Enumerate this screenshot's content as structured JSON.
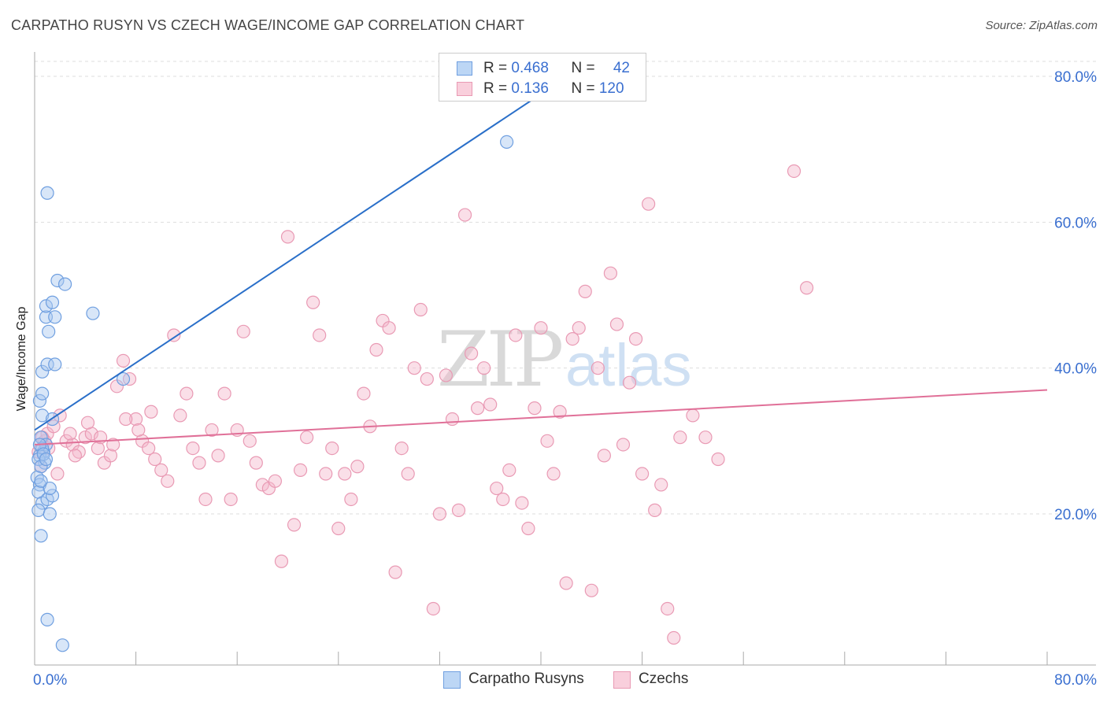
{
  "title": "CARPATHO RUSYN VS CZECH WAGE/INCOME GAP CORRELATION CHART",
  "source": "Source: ZipAtlas.com",
  "colors": {
    "blue_fill": "#a8c8f0",
    "blue_stroke": "#6f9fe0",
    "blue_line": "#2a6fc9",
    "pink_fill": "#f5b8cb",
    "pink_stroke": "#e99ab4",
    "pink_line": "#e07098",
    "axis_label_blue": "#3a6fd0"
  },
  "legend": {
    "row1": {
      "r_label": "R = ",
      "r_value": "0.468",
      "n_label": "N = ",
      "n_value": "42"
    },
    "row2": {
      "r_label": "R = ",
      "r_value": "0.136",
      "n_label": "N = ",
      "n_value": "120"
    }
  },
  "chart_data": {
    "type": "scatter",
    "title": "CARPATHO RUSYN VS CZECH WAGE/INCOME GAP CORRELATION CHART",
    "xlabel": "",
    "ylabel": "Wage/Income Gap",
    "xlim": [
      0,
      80
    ],
    "ylim": [
      0,
      82
    ],
    "x_tick_labels": {
      "left": "0.0%",
      "right": "80.0%"
    },
    "y_ticks": [
      20,
      40,
      60,
      80
    ],
    "y_tick_labels": [
      "20.0%",
      "40.0%",
      "60.0%",
      "80.0%"
    ],
    "watermark": {
      "part1": "ZIP",
      "part2": "atlas"
    },
    "series": [
      {
        "name": "Carpatho Rusyns",
        "R": 0.468,
        "N": 42,
        "trend": {
          "x0": 0,
          "y0": 31.5,
          "x1": 40.2,
          "y1": 77.8
        },
        "points": [
          [
            0.5,
            30.5
          ],
          [
            0.7,
            28.5
          ],
          [
            0.8,
            27.0
          ],
          [
            0.9,
            29.5
          ],
          [
            0.6,
            29.0
          ],
          [
            0.4,
            28.0
          ],
          [
            0.3,
            27.5
          ],
          [
            0.5,
            26.5
          ],
          [
            0.2,
            25.0
          ],
          [
            0.4,
            24.0
          ],
          [
            0.3,
            23.0
          ],
          [
            0.6,
            21.5
          ],
          [
            0.3,
            20.5
          ],
          [
            1.0,
            22.0
          ],
          [
            1.4,
            22.5
          ],
          [
            1.2,
            20.0
          ],
          [
            0.5,
            17.0
          ],
          [
            0.6,
            33.5
          ],
          [
            1.4,
            33.0
          ],
          [
            0.4,
            35.5
          ],
          [
            0.6,
            36.5
          ],
          [
            0.6,
            39.5
          ],
          [
            1.0,
            40.5
          ],
          [
            1.6,
            40.5
          ],
          [
            1.1,
            45.0
          ],
          [
            0.9,
            47.0
          ],
          [
            1.6,
            47.0
          ],
          [
            0.9,
            48.5
          ],
          [
            1.4,
            49.0
          ],
          [
            1.8,
            52.0
          ],
          [
            2.4,
            51.5
          ],
          [
            4.6,
            47.5
          ],
          [
            1.0,
            64.0
          ],
          [
            7.0,
            38.5
          ],
          [
            37.3,
            71.0
          ],
          [
            1.0,
            5.5
          ],
          [
            2.2,
            2.0
          ],
          [
            0.4,
            29.5
          ],
          [
            0.7,
            28.2
          ],
          [
            1.2,
            23.5
          ],
          [
            0.9,
            27.5
          ],
          [
            0.5,
            24.5
          ]
        ]
      },
      {
        "name": "Czechs",
        "R": 0.136,
        "N": 120,
        "trend": {
          "x0": 0,
          "y0": 29.5,
          "x1": 80,
          "y1": 37.0
        },
        "points": [
          [
            0.3,
            28.5
          ],
          [
            0.5,
            26.5
          ],
          [
            0.8,
            30.0
          ],
          [
            1.0,
            31.0
          ],
          [
            1.5,
            32.0
          ],
          [
            2.0,
            33.5
          ],
          [
            2.5,
            30.0
          ],
          [
            3.0,
            29.5
          ],
          [
            3.5,
            28.5
          ],
          [
            4.0,
            30.5
          ],
          [
            4.5,
            31.0
          ],
          [
            5.0,
            29.0
          ],
          [
            5.5,
            27.0
          ],
          [
            6.0,
            28.0
          ],
          [
            6.5,
            37.5
          ],
          [
            7.0,
            41.0
          ],
          [
            7.5,
            38.5
          ],
          [
            8.0,
            33.0
          ],
          [
            8.5,
            30.0
          ],
          [
            9.0,
            29.0
          ],
          [
            9.5,
            27.5
          ],
          [
            10.0,
            26.0
          ],
          [
            10.5,
            24.5
          ],
          [
            11.0,
            44.5
          ],
          [
            11.5,
            33.5
          ],
          [
            12.0,
            36.5
          ],
          [
            12.5,
            29.0
          ],
          [
            13.0,
            27.0
          ],
          [
            13.5,
            22.0
          ],
          [
            14.0,
            31.5
          ],
          [
            14.5,
            28.0
          ],
          [
            15.0,
            36.5
          ],
          [
            15.5,
            22.0
          ],
          [
            16.0,
            31.5
          ],
          [
            16.5,
            45.0
          ],
          [
            17.0,
            30.0
          ],
          [
            17.5,
            27.0
          ],
          [
            18.0,
            24.0
          ],
          [
            18.5,
            23.5
          ],
          [
            19.0,
            24.5
          ],
          [
            19.5,
            13.5
          ],
          [
            20.0,
            58.0
          ],
          [
            20.5,
            18.5
          ],
          [
            21.0,
            26.0
          ],
          [
            21.5,
            30.5
          ],
          [
            22.0,
            49.0
          ],
          [
            22.5,
            44.5
          ],
          [
            23.0,
            25.5
          ],
          [
            23.5,
            29.0
          ],
          [
            24.0,
            18.0
          ],
          [
            24.5,
            25.5
          ],
          [
            25.0,
            22.0
          ],
          [
            25.5,
            26.5
          ],
          [
            26.0,
            36.5
          ],
          [
            26.5,
            32.0
          ],
          [
            27.0,
            42.5
          ],
          [
            27.5,
            46.5
          ],
          [
            28.0,
            45.5
          ],
          [
            28.5,
            12.0
          ],
          [
            29.0,
            29.0
          ],
          [
            29.5,
            25.5
          ],
          [
            30.0,
            40.0
          ],
          [
            30.5,
            48.0
          ],
          [
            31.0,
            38.5
          ],
          [
            31.5,
            7.0
          ],
          [
            32.0,
            20.0
          ],
          [
            32.5,
            39.0
          ],
          [
            33.0,
            33.0
          ],
          [
            33.5,
            20.5
          ],
          [
            34.0,
            61.0
          ],
          [
            34.5,
            42.0
          ],
          [
            35.0,
            34.5
          ],
          [
            35.5,
            40.0
          ],
          [
            36.0,
            35.0
          ],
          [
            36.5,
            23.5
          ],
          [
            37.0,
            22.0
          ],
          [
            37.5,
            26.0
          ],
          [
            38.0,
            44.5
          ],
          [
            38.5,
            21.5
          ],
          [
            39.0,
            18.0
          ],
          [
            39.5,
            34.5
          ],
          [
            40.0,
            45.5
          ],
          [
            40.5,
            30.0
          ],
          [
            41.0,
            25.5
          ],
          [
            41.5,
            34.0
          ],
          [
            42.0,
            10.5
          ],
          [
            42.5,
            44.0
          ],
          [
            43.0,
            45.5
          ],
          [
            43.5,
            50.5
          ],
          [
            44.0,
            9.5
          ],
          [
            44.5,
            40.0
          ],
          [
            45.0,
            28.0
          ],
          [
            45.5,
            53.0
          ],
          [
            46.0,
            46.0
          ],
          [
            46.5,
            29.5
          ],
          [
            47.0,
            38.0
          ],
          [
            47.5,
            44.0
          ],
          [
            48.0,
            25.5
          ],
          [
            48.5,
            62.5
          ],
          [
            49.0,
            20.5
          ],
          [
            49.5,
            24.0
          ],
          [
            50.0,
            7.0
          ],
          [
            50.5,
            3.0
          ],
          [
            51.0,
            30.5
          ],
          [
            52.0,
            33.5
          ],
          [
            53.0,
            30.5
          ],
          [
            54.0,
            27.5
          ],
          [
            60.0,
            67.0
          ],
          [
            61.0,
            51.0
          ],
          [
            0.6,
            30.5
          ],
          [
            1.1,
            29.0
          ],
          [
            1.8,
            25.5
          ],
          [
            2.8,
            31.0
          ],
          [
            3.2,
            28.0
          ],
          [
            4.2,
            32.5
          ],
          [
            5.2,
            30.5
          ],
          [
            6.2,
            29.5
          ],
          [
            7.2,
            33.0
          ],
          [
            8.2,
            31.5
          ],
          [
            9.2,
            34.0
          ]
        ]
      }
    ]
  }
}
